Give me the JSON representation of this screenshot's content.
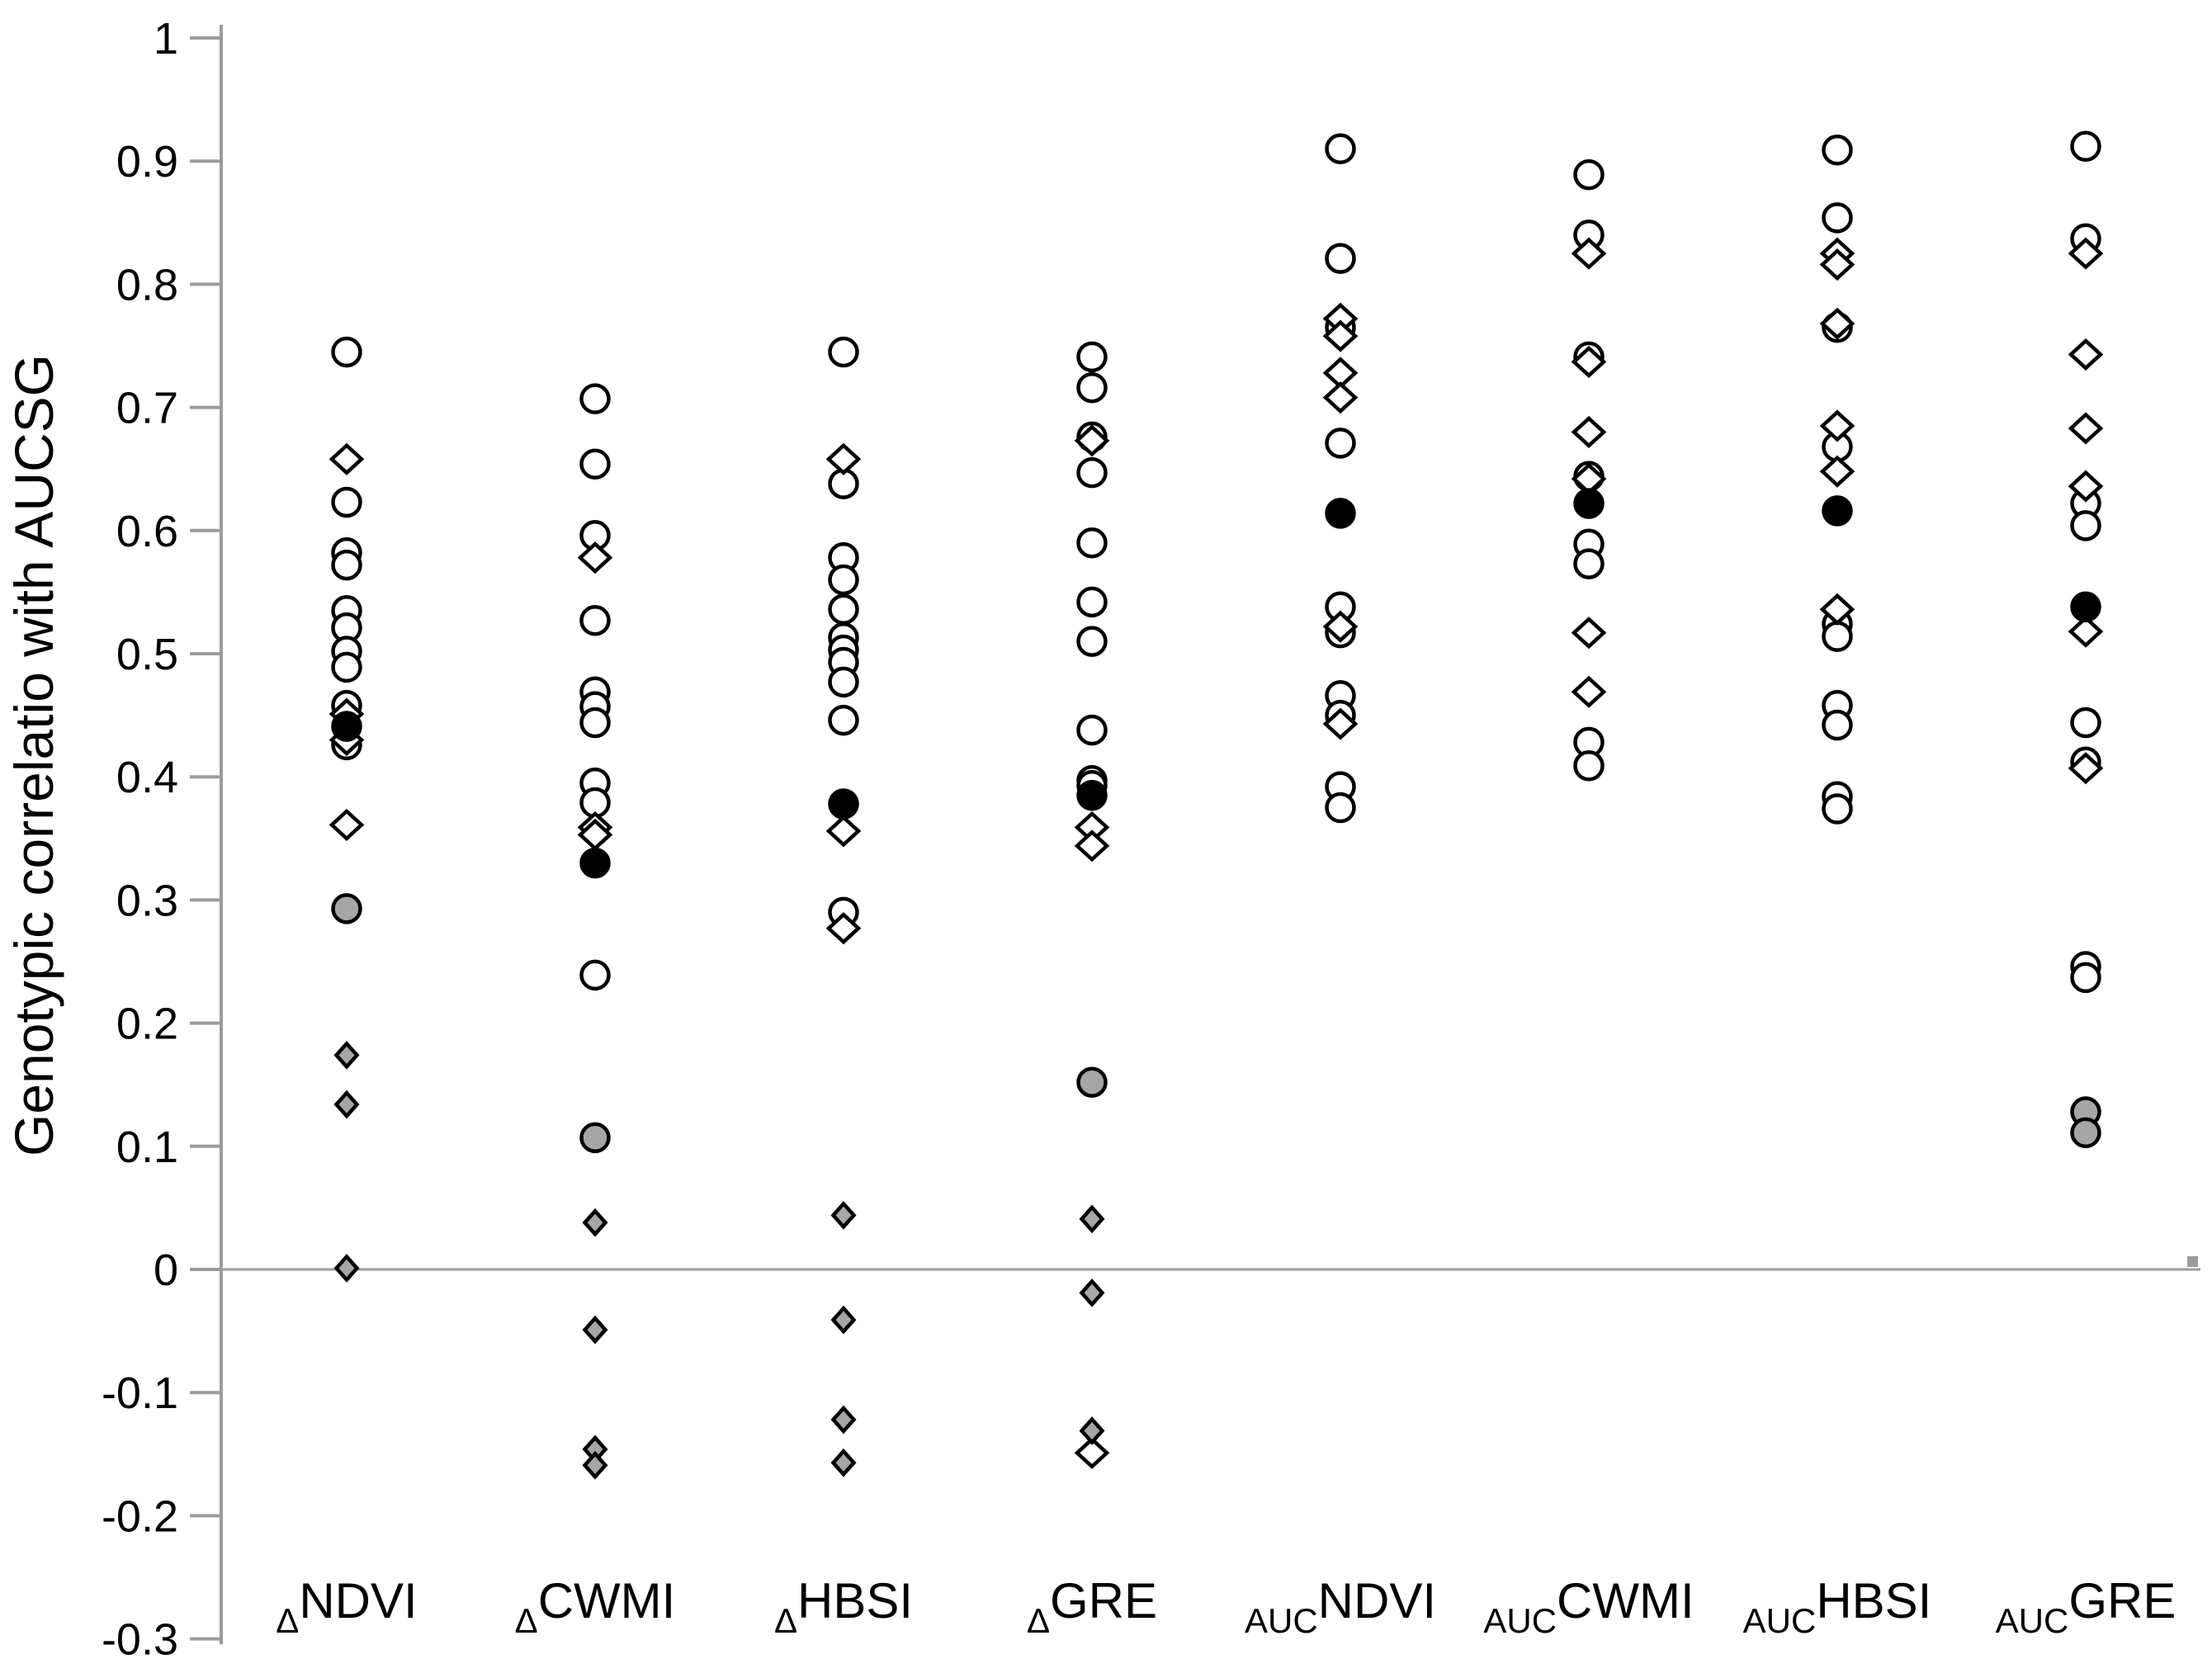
{
  "chart_data": {
    "type": "scatter",
    "title": "",
    "ylabel": "Genotypic correlatio with AUCSG",
    "xlabel": "",
    "ylim": [
      -0.3,
      1.0
    ],
    "y_tick_step": 0.1,
    "y_tick_labels": [
      "1",
      "0.9",
      "0.8",
      "0.7",
      "0.6",
      "0.5",
      "0.4",
      "0.3",
      "0.2",
      "0.1",
      "0",
      "-0.1",
      "-0.2",
      "-0.3"
    ],
    "grid": "zero-line-only",
    "legend": "none",
    "colors": {
      "axis": "#9c9c9c",
      "marker_stroke": "#000000",
      "open_fill": "#ffffff",
      "gray_fill": "#a6a6a6",
      "black_fill": "#000000",
      "text": "#000000"
    },
    "categories": [
      {
        "prefix": "Δ",
        "name": "NDVI"
      },
      {
        "prefix": "Δ",
        "name": "CWMI"
      },
      {
        "prefix": "Δ",
        "name": "HBSI"
      },
      {
        "prefix": "Δ",
        "name": "GRE"
      },
      {
        "prefix": "AUC",
        "name": "NDVI"
      },
      {
        "prefix": "AUC",
        "name": "CWMI"
      },
      {
        "prefix": "AUC",
        "name": "HBSI"
      },
      {
        "prefix": "AUC",
        "name": "GRE"
      }
    ],
    "series": [
      {
        "name": "open-circles",
        "marker": "circle",
        "fill": "open",
        "values": [
          [
            0.745,
            0.623,
            0.582,
            0.572,
            0.535,
            0.521,
            0.502,
            0.489,
            0.458,
            0.426
          ],
          [
            0.707,
            0.654,
            0.596,
            0.527,
            0.469,
            0.457,
            0.444,
            0.395,
            0.379,
            0.239
          ],
          [
            0.745,
            0.638,
            0.578,
            0.56,
            0.536,
            0.513,
            0.503,
            0.493,
            0.477,
            0.446,
            0.29
          ],
          [
            0.741,
            0.716,
            0.676,
            0.647,
            0.59,
            0.542,
            0.51,
            0.438,
            0.397,
            0.393
          ],
          [
            0.91,
            0.821,
            0.765,
            0.671,
            0.538,
            0.517,
            0.466,
            0.45,
            0.392,
            0.375
          ],
          [
            0.889,
            0.84,
            0.741,
            0.644,
            0.589,
            0.573,
            0.428,
            0.409
          ],
          [
            0.909,
            0.854,
            0.765,
            0.668,
            0.524,
            0.514,
            0.458,
            0.442,
            0.384,
            0.374
          ],
          [
            0.912,
            0.837,
            0.622,
            0.604,
            0.444,
            0.412,
            0.246,
            0.237
          ]
        ]
      },
      {
        "name": "open-diamonds",
        "marker": "diamond",
        "fill": "open",
        "values": [
          [
            0.658,
            0.451,
            0.43,
            0.361
          ],
          [
            0.578,
            0.359,
            0.353
          ],
          [
            0.658,
            0.356,
            0.277
          ],
          [
            0.673,
            0.359,
            0.344,
            -0.149
          ],
          [
            0.772,
            0.758,
            0.728,
            0.708,
            0.522,
            0.443
          ],
          [
            0.825,
            0.737,
            0.68,
            0.642,
            0.517,
            0.469
          ],
          [
            0.825,
            0.816,
            0.768,
            0.685,
            0.648,
            0.536
          ],
          [
            0.825,
            0.743,
            0.683,
            0.636,
            0.518,
            0.407
          ]
        ]
      },
      {
        "name": "black-circles",
        "marker": "circle",
        "fill": "black",
        "values": [
          [
            0.441
          ],
          [
            0.33
          ],
          [
            0.378
          ],
          [
            0.385
          ],
          [
            0.614
          ],
          [
            0.622
          ],
          [
            0.616
          ],
          [
            0.538
          ]
        ]
      },
      {
        "name": "gray-circles",
        "marker": "circle",
        "fill": "gray",
        "values": [
          [
            0.293
          ],
          [
            0.107
          ],
          [],
          [
            0.152
          ],
          [],
          [],
          [],
          [
            0.128,
            0.111
          ]
        ]
      },
      {
        "name": "gray-diamonds",
        "marker": "diamond",
        "fill": "gray",
        "values": [
          [
            0.174,
            0.134,
            0.001
          ],
          [
            0.038,
            -0.049,
            -0.146,
            -0.159
          ],
          [
            0.044,
            -0.041,
            -0.122,
            -0.157
          ],
          [
            0.041,
            -0.019,
            -0.131
          ],
          [],
          [],
          [],
          []
        ]
      }
    ]
  }
}
